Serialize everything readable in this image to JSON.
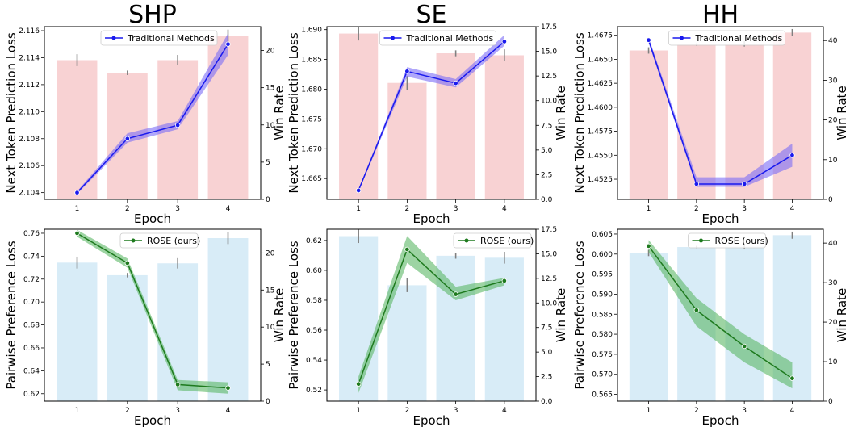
{
  "colors": {
    "traditional_line": "#1a1aee",
    "traditional_band": "#7b6cf6",
    "traditional_bar": "#f8d2d3",
    "rose_line": "#1e7a1e",
    "rose_band": "#5cb865",
    "rose_bar": "#d8ecf7",
    "errorbar": "#808080"
  },
  "chart_data": [
    {
      "type": "bar+line",
      "panel": "SHP-top",
      "title": "SHP",
      "xlabel": "Epoch",
      "ylabel": "Next Token Prediction Loss",
      "y2label": "Win Rate",
      "x": [
        1,
        2,
        3,
        4
      ],
      "xticks": [
        "1",
        "2",
        "3",
        "4"
      ],
      "ylim": [
        2.1035,
        2.1163
      ],
      "yticks": [
        "2.104",
        "2.106",
        "2.108",
        "2.110",
        "2.112",
        "2.114",
        "2.116"
      ],
      "y2lim": [
        0,
        23.2
      ],
      "y2ticks": [
        "0",
        "5",
        "10",
        "15",
        "20"
      ],
      "series": [
        {
          "name": "Traditional Methods",
          "style": "traditional",
          "values": [
            2.104,
            2.108,
            2.109,
            2.115
          ],
          "lower": [
            2.1039,
            2.1077,
            2.1087,
            2.1142
          ],
          "upper": [
            2.1041,
            2.1084,
            2.1093,
            2.1158
          ]
        }
      ],
      "bars": {
        "values": [
          18.7,
          17.0,
          18.7,
          22.0
        ],
        "err": [
          0.8,
          0.3,
          0.7,
          0.8
        ]
      },
      "legend_position": "top-center"
    },
    {
      "type": "bar+line",
      "panel": "SE-top",
      "title": "SE",
      "xlabel": "Epoch",
      "ylabel": "Next Token Prediction Loss",
      "y2label": "Win Rate",
      "x": [
        1,
        2,
        3,
        4
      ],
      "xticks": [
        "1",
        "2",
        "3",
        "4"
      ],
      "ylim": [
        1.6615,
        1.6905
      ],
      "yticks": [
        "1.665",
        "1.670",
        "1.675",
        "1.680",
        "1.685",
        "1.690"
      ],
      "y2lim": [
        0,
        17.5
      ],
      "y2ticks": [
        "0.0",
        "2.5",
        "5.0",
        "7.5",
        "10.0",
        "12.5",
        "15.0",
        "17.5"
      ],
      "series": [
        {
          "name": "Traditional Methods",
          "style": "traditional",
          "values": [
            1.663,
            1.683,
            1.681,
            1.688
          ],
          "lower": [
            1.6628,
            1.6821,
            1.6803,
            1.6873
          ],
          "upper": [
            1.6632,
            1.6837,
            1.6817,
            1.6891
          ]
        }
      ],
      "bars": {
        "values": [
          16.8,
          11.8,
          14.8,
          14.6
        ],
        "err": [
          0.7,
          0.7,
          0.3,
          0.6
        ]
      },
      "legend_position": "top-center"
    },
    {
      "type": "bar+line",
      "panel": "HH-top",
      "title": "HH",
      "xlabel": "Epoch",
      "ylabel": "Next Token Prediction Loss",
      "y2label": "Win Rate",
      "x": [
        1,
        2,
        3,
        4
      ],
      "xticks": [
        "1",
        "2",
        "3",
        "4"
      ],
      "ylim": [
        1.4504,
        1.4684
      ],
      "yticks": [
        "1.4525",
        "1.4550",
        "1.4575",
        "1.4600",
        "1.4625",
        "1.4650",
        "1.4675"
      ],
      "y2lim": [
        0,
        43.5
      ],
      "y2ticks": [
        "0",
        "10",
        "20",
        "30",
        "40"
      ],
      "series": [
        {
          "name": "Traditional Methods",
          "style": "traditional",
          "values": [
            1.467,
            1.452,
            1.452,
            1.455
          ],
          "lower": [
            1.4667,
            1.4517,
            1.4517,
            1.4538
          ],
          "upper": [
            1.4673,
            1.4527,
            1.4527,
            1.4562
          ]
        }
      ],
      "bars": {
        "values": [
          37.5,
          39.0,
          39.2,
          42.0
        ],
        "err": [
          0.8,
          0.3,
          0.7,
          0.9
        ]
      },
      "legend_position": "top-center"
    },
    {
      "type": "bar+line",
      "panel": "SHP-bottom",
      "xlabel": "Epoch",
      "ylabel": "Pairwise Preference Loss",
      "y2label": "Win Rate",
      "x": [
        1,
        2,
        3,
        4
      ],
      "xticks": [
        "1",
        "2",
        "3",
        "4"
      ],
      "ylim": [
        0.6135,
        0.7635
      ],
      "yticks": [
        "0.62",
        "0.64",
        "0.66",
        "0.68",
        "0.70",
        "0.72",
        "0.74",
        "0.76"
      ],
      "y2lim": [
        0,
        23.2
      ],
      "y2ticks": [
        "0",
        "5",
        "10",
        "15",
        "20"
      ],
      "series": [
        {
          "name": "ROSE (ours)",
          "style": "rose",
          "values": [
            0.76,
            0.734,
            0.628,
            0.625
          ],
          "lower": [
            0.757,
            0.73,
            0.623,
            0.62
          ],
          "upper": [
            0.763,
            0.738,
            0.632,
            0.63
          ]
        }
      ],
      "bars": {
        "values": [
          18.7,
          17.0,
          18.6,
          22.0
        ],
        "err": [
          0.8,
          0.3,
          0.7,
          0.8
        ]
      },
      "legend_position": "top-center"
    },
    {
      "type": "bar+line",
      "panel": "SE-bottom",
      "xlabel": "Epoch",
      "ylabel": "Pairwise Preference Loss",
      "y2label": "Win Rate",
      "x": [
        1,
        2,
        3,
        4
      ],
      "xticks": [
        "1",
        "2",
        "3",
        "4"
      ],
      "ylim": [
        0.5125,
        0.6275
      ],
      "yticks": [
        "0.52",
        "0.54",
        "0.56",
        "0.58",
        "0.60",
        "0.62"
      ],
      "y2lim": [
        0,
        17.5
      ],
      "y2ticks": [
        "0.0",
        "2.5",
        "5.0",
        "7.5",
        "10.0",
        "12.5",
        "15.0",
        "17.5"
      ],
      "series": [
        {
          "name": "ROSE (ours)",
          "style": "rose",
          "values": [
            0.524,
            0.614,
            0.584,
            0.593
          ],
          "lower": [
            0.518,
            0.605,
            0.58,
            0.59
          ],
          "upper": [
            0.529,
            0.623,
            0.589,
            0.595
          ]
        }
      ],
      "bars": {
        "values": [
          16.8,
          11.8,
          14.8,
          14.6
        ],
        "err": [
          0.7,
          0.7,
          0.3,
          0.6
        ]
      },
      "legend_position": "top-right"
    },
    {
      "type": "bar+line",
      "panel": "HH-bottom",
      "xlabel": "Epoch",
      "ylabel": "Pairwise Preference Loss",
      "y2label": "Win Rate",
      "x": [
        1,
        2,
        3,
        4
      ],
      "xticks": [
        "1",
        "2",
        "3",
        "4"
      ],
      "ylim": [
        0.5633,
        0.6062
      ],
      "yticks": [
        "0.565",
        "0.570",
        "0.575",
        "0.580",
        "0.585",
        "0.590",
        "0.595",
        "0.600",
        "0.605"
      ],
      "y2lim": [
        0,
        43.5
      ],
      "y2ticks": [
        "0",
        "10",
        "20",
        "30",
        "40"
      ],
      "series": [
        {
          "name": "ROSE (ours)",
          "style": "rose",
          "values": [
            0.602,
            0.586,
            0.577,
            0.569
          ],
          "lower": [
            0.6005,
            0.582,
            0.573,
            0.5665
          ],
          "upper": [
            0.6035,
            0.589,
            0.58,
            0.573
          ]
        }
      ],
      "bars": {
        "values": [
          37.5,
          39.0,
          39.2,
          42.0
        ],
        "err": [
          0.8,
          0.3,
          0.7,
          0.9
        ]
      },
      "legend_position": "top-center"
    }
  ]
}
